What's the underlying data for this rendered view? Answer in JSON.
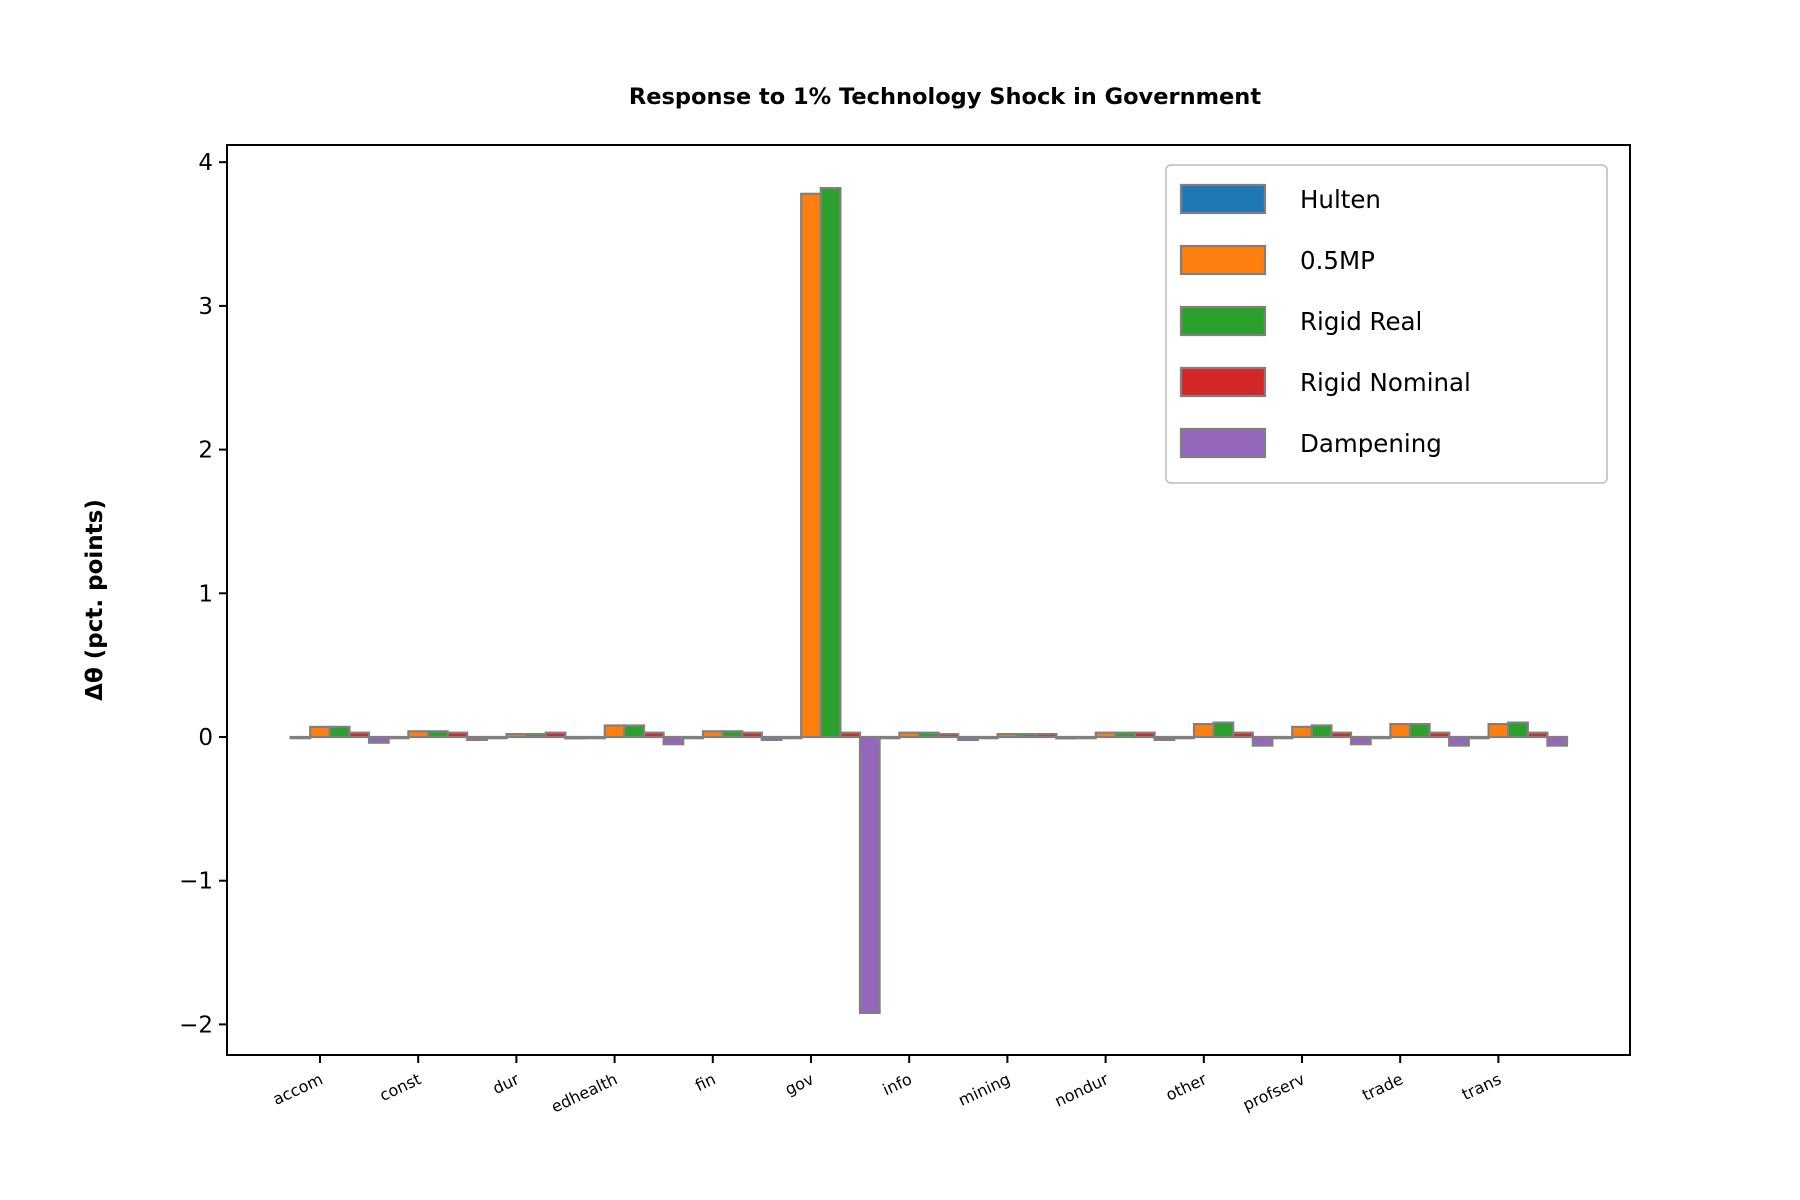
{
  "chart_data": {
    "type": "bar",
    "title": "Response to 1% Technology Shock in Government",
    "xlabel": "",
    "ylabel": "Δθ  (pct. points)",
    "ylim": [
      -2.2,
      4.1
    ],
    "yticks": [
      -2,
      -1,
      0,
      1,
      2,
      3,
      4
    ],
    "ytick_labels": [
      "−2",
      "−1",
      "0",
      "1",
      "2",
      "3",
      "4"
    ],
    "grid": false,
    "legend_position": "upper right",
    "categories": [
      "accom",
      "const",
      "dur",
      "edhealth",
      "fin",
      "gov",
      "info",
      "mining",
      "nondur",
      "other",
      "profserv",
      "trade",
      "trans"
    ],
    "series": [
      {
        "name": "Hulten",
        "color": "#1f77b4",
        "values": [
          0,
          0,
          0,
          0,
          0,
          0,
          0,
          0,
          0,
          0,
          0,
          0,
          0
        ]
      },
      {
        "name": "0.5MP",
        "color": "#ff7f0e",
        "values": [
          0.07,
          0.04,
          0.02,
          0.08,
          0.04,
          3.78,
          0.03,
          0.02,
          0.03,
          0.09,
          0.07,
          0.09,
          0.09
        ]
      },
      {
        "name": "Rigid Real",
        "color": "#2ca02c",
        "values": [
          0.07,
          0.04,
          0.02,
          0.08,
          0.04,
          3.82,
          0.03,
          0.02,
          0.03,
          0.1,
          0.08,
          0.09,
          0.1
        ]
      },
      {
        "name": "Rigid Nominal",
        "color": "#d62728",
        "values": [
          0.03,
          0.03,
          0.03,
          0.03,
          0.03,
          0.03,
          0.02,
          0.02,
          0.03,
          0.03,
          0.03,
          0.03,
          0.03
        ]
      },
      {
        "name": "Dampening",
        "color": "#9467bd",
        "values": [
          -0.04,
          -0.02,
          -0.01,
          -0.05,
          -0.02,
          -1.92,
          -0.02,
          -0.01,
          -0.02,
          -0.06,
          -0.05,
          -0.06,
          -0.06
        ]
      }
    ],
    "bar_edge_color": "#808080"
  }
}
